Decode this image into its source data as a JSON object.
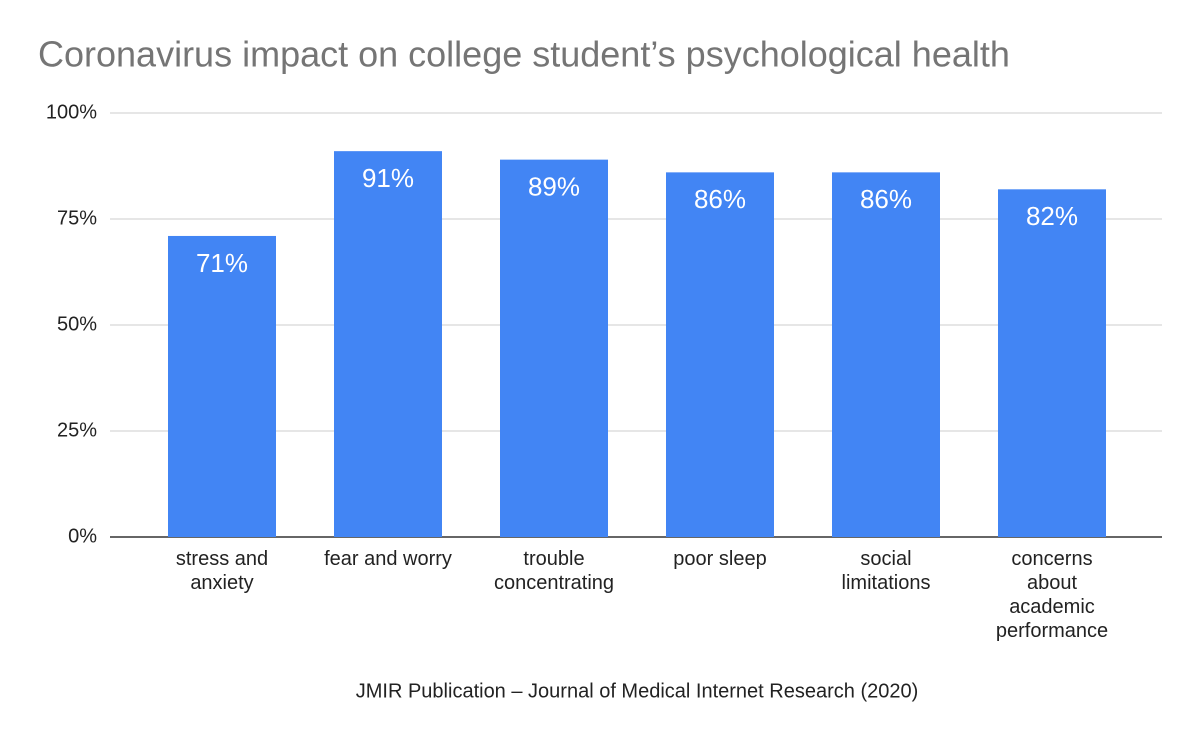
{
  "chart_data": {
    "type": "bar",
    "title": "Coronavirus impact on college student’s psychological health",
    "source": "JMIR Publication – Journal of Medical Internet Research (2020)",
    "categories": [
      "stress and\nanxiety",
      "fear and worry",
      "trouble\nconcentrating",
      "poor sleep",
      "social\nlimitations",
      "concerns\nabout\nacademic\nperformance"
    ],
    "values": [
      71,
      91,
      89,
      86,
      86,
      82
    ],
    "value_labels": [
      "71%",
      "91%",
      "89%",
      "86%",
      "86%",
      "82%"
    ],
    "color": "#4285f4",
    "ylim": [
      0,
      100
    ],
    "yticks": [
      {
        "value": 0,
        "label": "0%"
      },
      {
        "value": 25,
        "label": "25%"
      },
      {
        "value": 50,
        "label": "50%"
      },
      {
        "value": 75,
        "label": "75%"
      },
      {
        "value": 100,
        "label": "100%"
      }
    ],
    "grid": true
  }
}
